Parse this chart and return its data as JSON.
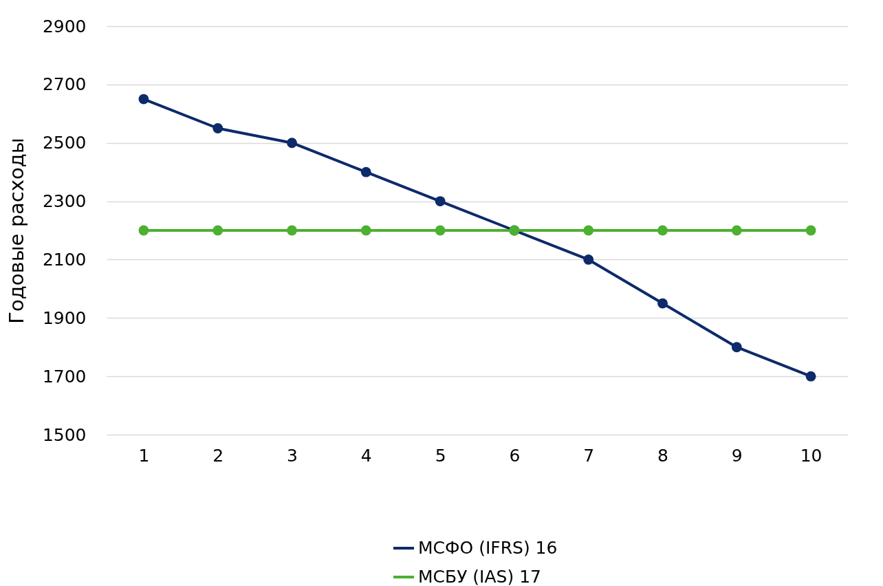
{
  "chart_data": {
    "type": "line",
    "ylabel": "Годовые расходы",
    "categories": [
      "1",
      "2",
      "3",
      "4",
      "5",
      "6",
      "7",
      "8",
      "9",
      "10"
    ],
    "series": [
      {
        "name": "МСФО (IFRS) 16",
        "color": "#0d2a6b",
        "values": [
          2650,
          2550,
          2500,
          2400,
          2300,
          2200,
          2100,
          1950,
          1800,
          1700
        ]
      },
      {
        "name": "МСБУ (IAS) 17",
        "color": "#4cb030",
        "values": [
          2200,
          2200,
          2200,
          2200,
          2200,
          2200,
          2200,
          2200,
          2200,
          2200
        ]
      }
    ],
    "ylim": [
      1500,
      2900
    ],
    "yticks": [
      1500,
      1700,
      1900,
      2100,
      2300,
      2500,
      2700,
      2900
    ],
    "grid": "y",
    "legend": "bottom",
    "marker": "circle",
    "line_style": "solid"
  }
}
